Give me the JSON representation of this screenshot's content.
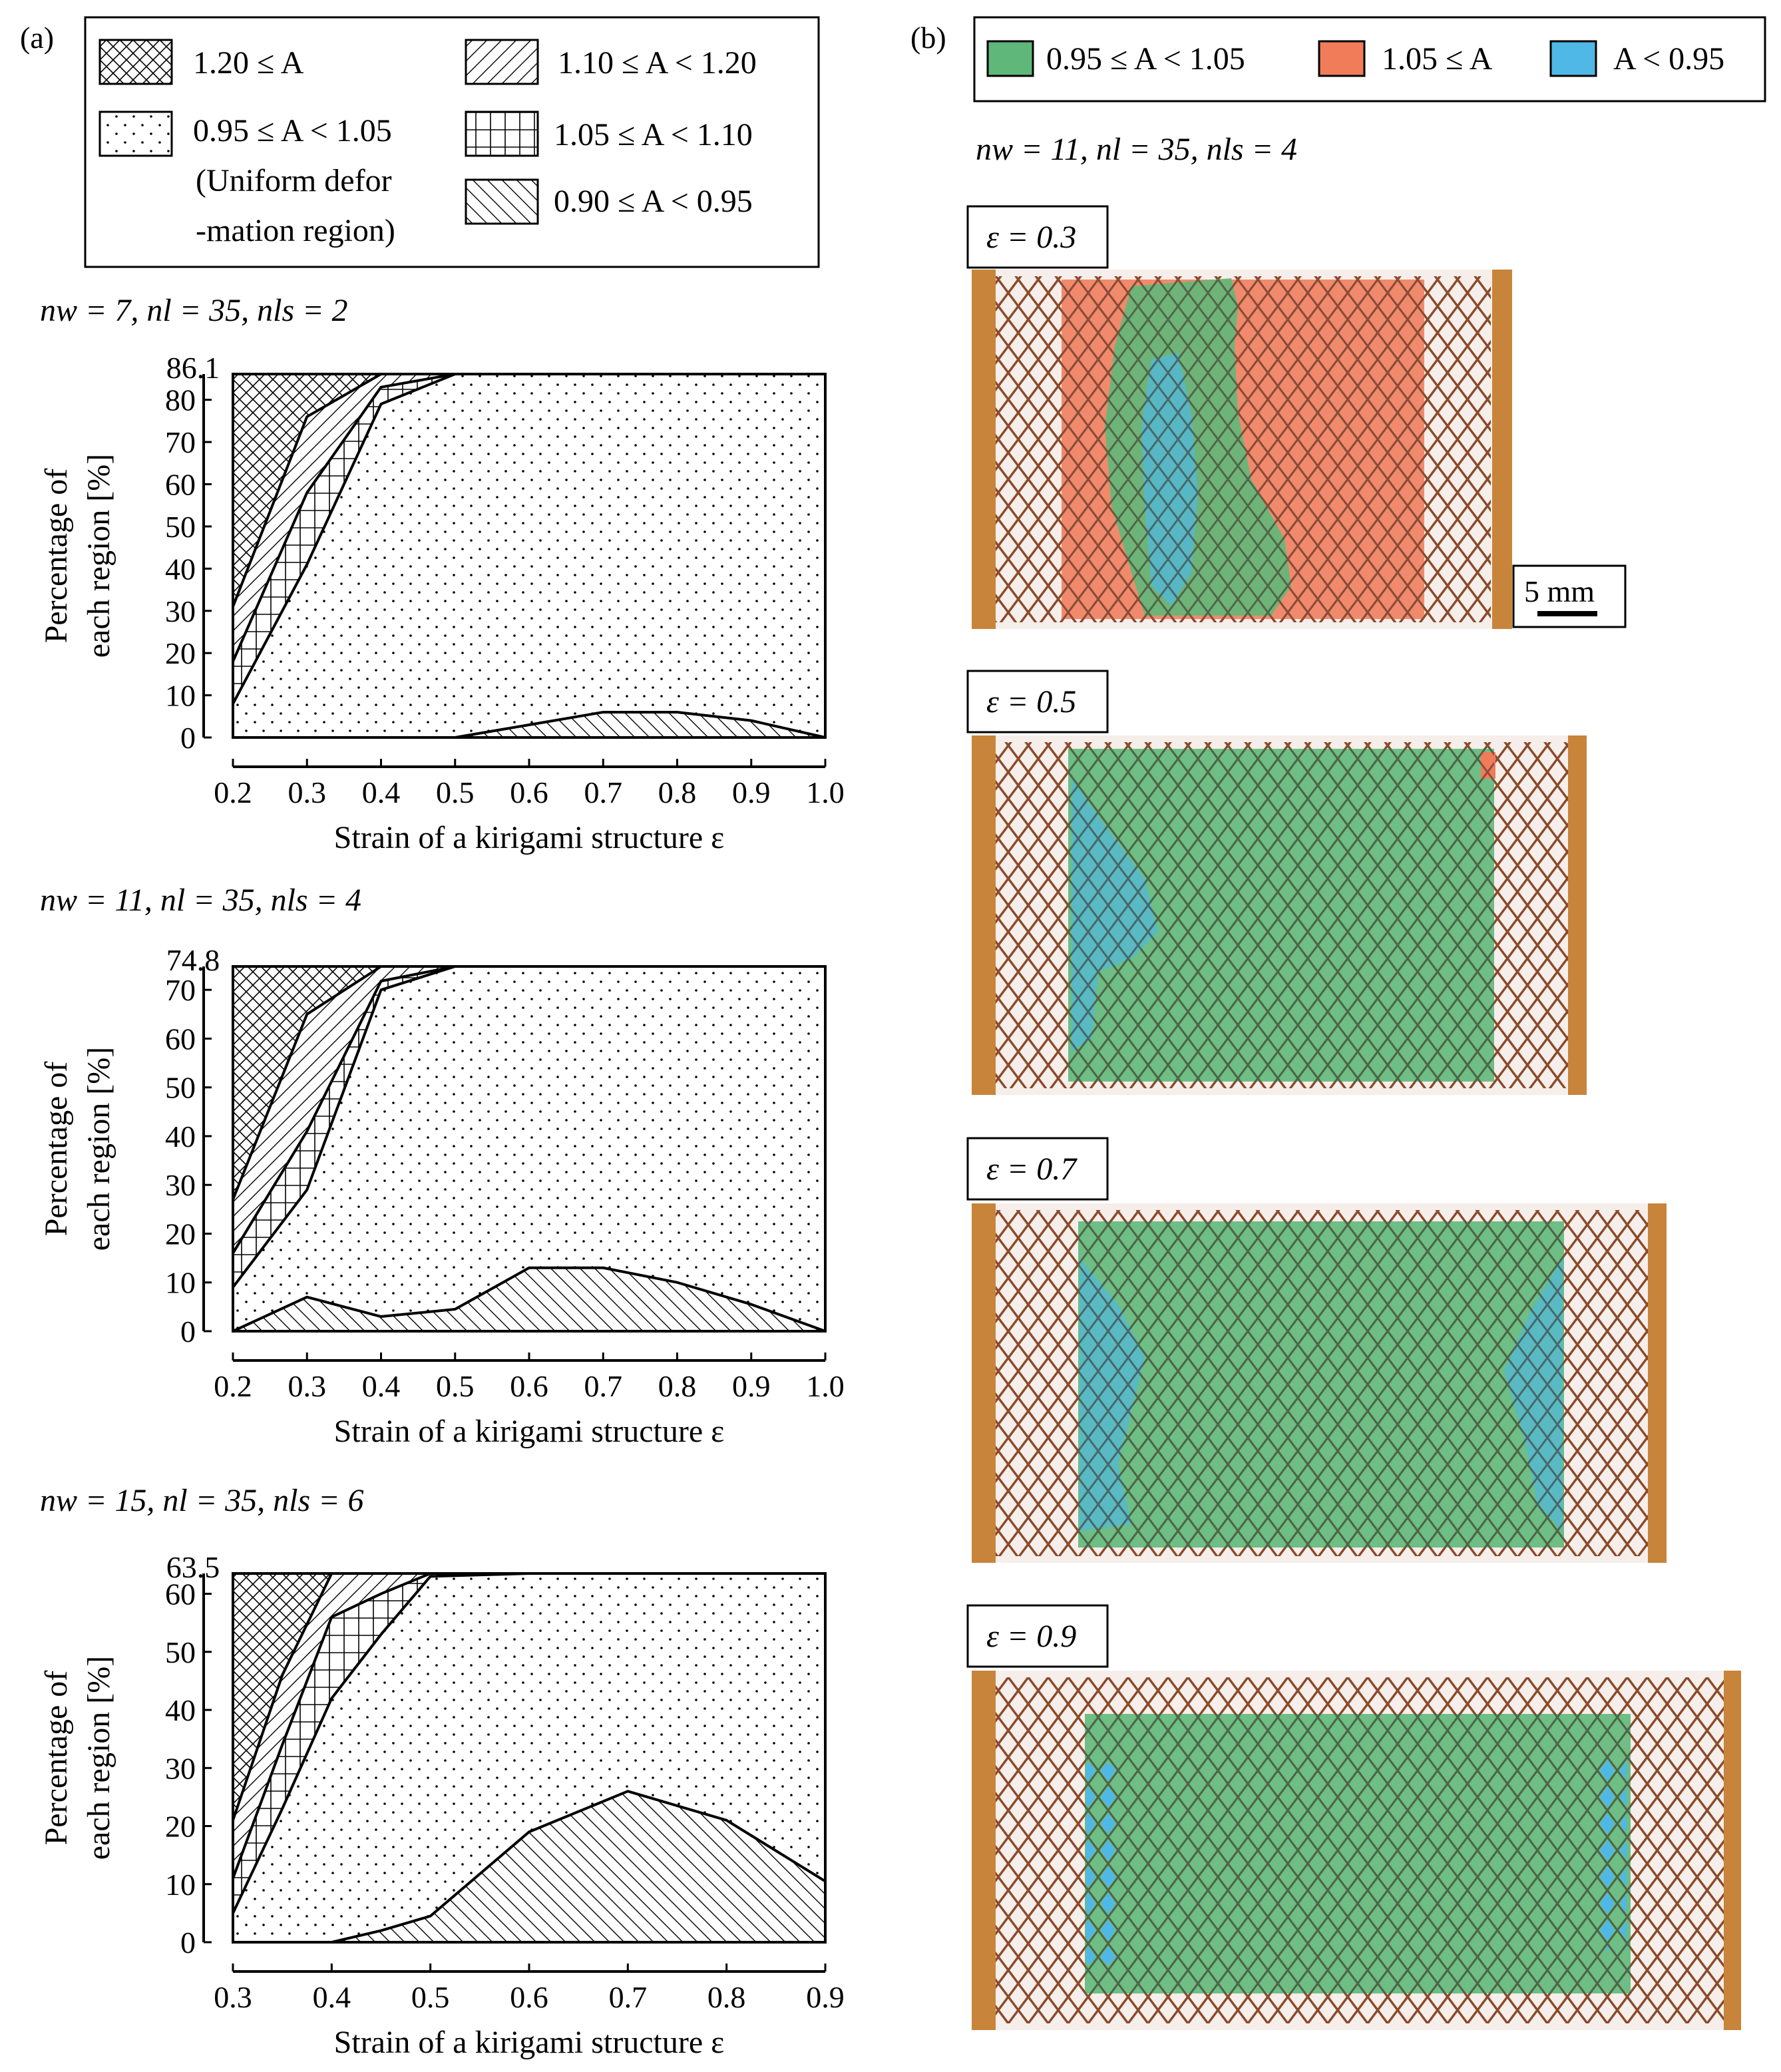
{
  "figure": {
    "panel_a_label": "(a)",
    "panel_b_label": "(b)",
    "scale_bar_label": "5 mm"
  },
  "legend_a": {
    "items": [
      {
        "id": "r120",
        "text": "1.20 ≤ A"
      },
      {
        "id": "r110",
        "text": "1.10 ≤ A < 1.20"
      },
      {
        "id": "r095",
        "text": "0.95 ≤ A < 1.05"
      },
      {
        "id": "r105",
        "text": "1.05 ≤ A < 1.10"
      },
      {
        "id": "r090",
        "text": "0.90 ≤ A < 0.95"
      }
    ],
    "uniform_note_line1": "(Uniform defor",
    "uniform_note_line2": "-mation region)"
  },
  "legend_b": {
    "items": [
      {
        "text": "0.95 ≤ A < 1.05",
        "color": "#5fb87a"
      },
      {
        "text": "1.05 ≤ A",
        "color": "#f07c5a"
      },
      {
        "text": "A < 0.95",
        "color": "#4fb8e6"
      }
    ]
  },
  "panel_b": {
    "params": "nw = 11, nl = 35, nls = 4",
    "photos": [
      {
        "label": "ε = 0.3"
      },
      {
        "label": "ε = 0.5"
      },
      {
        "label": "ε = 0.7"
      },
      {
        "label": "ε = 0.9"
      }
    ]
  },
  "colors": {
    "uniform_green": "#5fb87a",
    "high_orange": "#f07c5a",
    "low_blue": "#4fb8e6",
    "copper": "#c8843a",
    "mesh": "#8a4a2a"
  },
  "chart_data": [
    {
      "type": "area",
      "stacked": true,
      "params": "nw = 7, nl = 35, nls = 2",
      "xlabel": "Strain of a kirigami structure ε",
      "ylabel_line1": "Percentage of",
      "ylabel_line2": "each region [%]",
      "xlim": [
        0.2,
        1.0
      ],
      "ylim": [
        0,
        86.1
      ],
      "top_label": "86.1",
      "xticks": [
        "0.2",
        "0.3",
        "0.4",
        "0.5",
        "0.6",
        "0.7",
        "0.8",
        "0.9",
        "1.0"
      ],
      "yticks": [
        "0",
        "10",
        "20",
        "30",
        "40",
        "50",
        "60",
        "70",
        "80"
      ],
      "x": [
        0.2,
        0.3,
        0.4,
        0.5,
        0.6,
        0.7,
        0.8,
        0.9,
        1.0
      ],
      "series": [
        {
          "name": "0.90 ≤ A < 0.95",
          "values": [
            0,
            0,
            0,
            0,
            3,
            6,
            6,
            4,
            0
          ]
        },
        {
          "name": "0.95 ≤ A < 1.05",
          "values": [
            8,
            41,
            79,
            86.1,
            83.1,
            80.1,
            80.1,
            82.1,
            86.1
          ]
        },
        {
          "name": "1.05 ≤ A < 1.10",
          "values": [
            10,
            17,
            4,
            0,
            0,
            0,
            0,
            0,
            0
          ]
        },
        {
          "name": "1.10 ≤ A < 1.20",
          "values": [
            13,
            18,
            3.1,
            0,
            0,
            0,
            0,
            0,
            0
          ]
        },
        {
          "name": "1.20 ≤ A",
          "values": [
            55.1,
            10.1,
            0,
            0,
            0,
            0,
            0,
            0,
            0
          ]
        }
      ]
    },
    {
      "type": "area",
      "stacked": true,
      "params": "nw = 11, nl = 35, nls = 4",
      "xlabel": "Strain of a kirigami structure ε",
      "ylabel_line1": "Percentage of",
      "ylabel_line2": "each region [%]",
      "xlim": [
        0.2,
        1.0
      ],
      "ylim": [
        0,
        74.8
      ],
      "top_label": "74.8",
      "xticks": [
        "0.2",
        "0.3",
        "0.4",
        "0.5",
        "0.6",
        "0.7",
        "0.8",
        "0.9",
        "1.0"
      ],
      "yticks": [
        "0",
        "10",
        "20",
        "30",
        "40",
        "50",
        "60",
        "70"
      ],
      "x": [
        0.2,
        0.3,
        0.4,
        0.5,
        0.6,
        0.7,
        0.8,
        0.9,
        1.0
      ],
      "series": [
        {
          "name": "0.90 ≤ A < 0.95",
          "values": [
            0,
            7,
            3,
            4.5,
            13,
            13,
            10,
            5.5,
            0
          ]
        },
        {
          "name": "0.95 ≤ A < 1.05",
          "values": [
            9,
            22,
            67,
            70.3,
            61.8,
            61.8,
            64.8,
            69.3,
            74.8
          ]
        },
        {
          "name": "1.05 ≤ A < 1.10",
          "values": [
            7,
            12,
            1.8,
            0,
            0,
            0,
            0,
            0,
            0
          ]
        },
        {
          "name": "1.10 ≤ A < 1.20",
          "values": [
            11,
            24,
            3,
            0,
            0,
            0,
            0,
            0,
            0
          ]
        },
        {
          "name": "1.20 ≤ A",
          "values": [
            47.8,
            9.8,
            0,
            0,
            0,
            0,
            0,
            0,
            0
          ]
        }
      ]
    },
    {
      "type": "area",
      "stacked": true,
      "params": "nw = 15, nl = 35, nls = 6",
      "xlabel": "Strain of a kirigami structure ε",
      "ylabel_line1": "Percentage of",
      "ylabel_line2": "each region [%]",
      "xlim": [
        0.3,
        0.9
      ],
      "ylim": [
        0,
        63.5
      ],
      "top_label": "63.5",
      "xticks": [
        "0.3",
        "0.4",
        "0.5",
        "0.6",
        "0.7",
        "0.8",
        "0.9"
      ],
      "yticks": [
        "0",
        "10",
        "20",
        "30",
        "40",
        "50",
        "60"
      ],
      "x": [
        0.3,
        0.35,
        0.4,
        0.45,
        0.5,
        0.6,
        0.7,
        0.8,
        0.9
      ],
      "series": [
        {
          "name": "0.90 ≤ A < 0.95",
          "values": [
            0,
            0,
            0,
            2,
            4.5,
            19,
            26,
            21,
            10.5
          ]
        },
        {
          "name": "0.95 ≤ A < 1.05",
          "values": [
            5,
            23,
            42,
            51,
            58.5,
            44.5,
            37.5,
            42.5,
            53
          ]
        },
        {
          "name": "1.05 ≤ A < 1.10",
          "values": [
            6,
            11,
            14,
            7,
            0.5,
            0,
            0,
            0,
            0
          ]
        },
        {
          "name": "1.10 ≤ A < 1.20",
          "values": [
            10,
            12,
            7.5,
            3.5,
            0,
            0,
            0,
            0,
            0
          ]
        },
        {
          "name": "1.20 ≤ A",
          "values": [
            42.5,
            17.5,
            0,
            0,
            0,
            0,
            0,
            0,
            0
          ]
        }
      ]
    }
  ]
}
